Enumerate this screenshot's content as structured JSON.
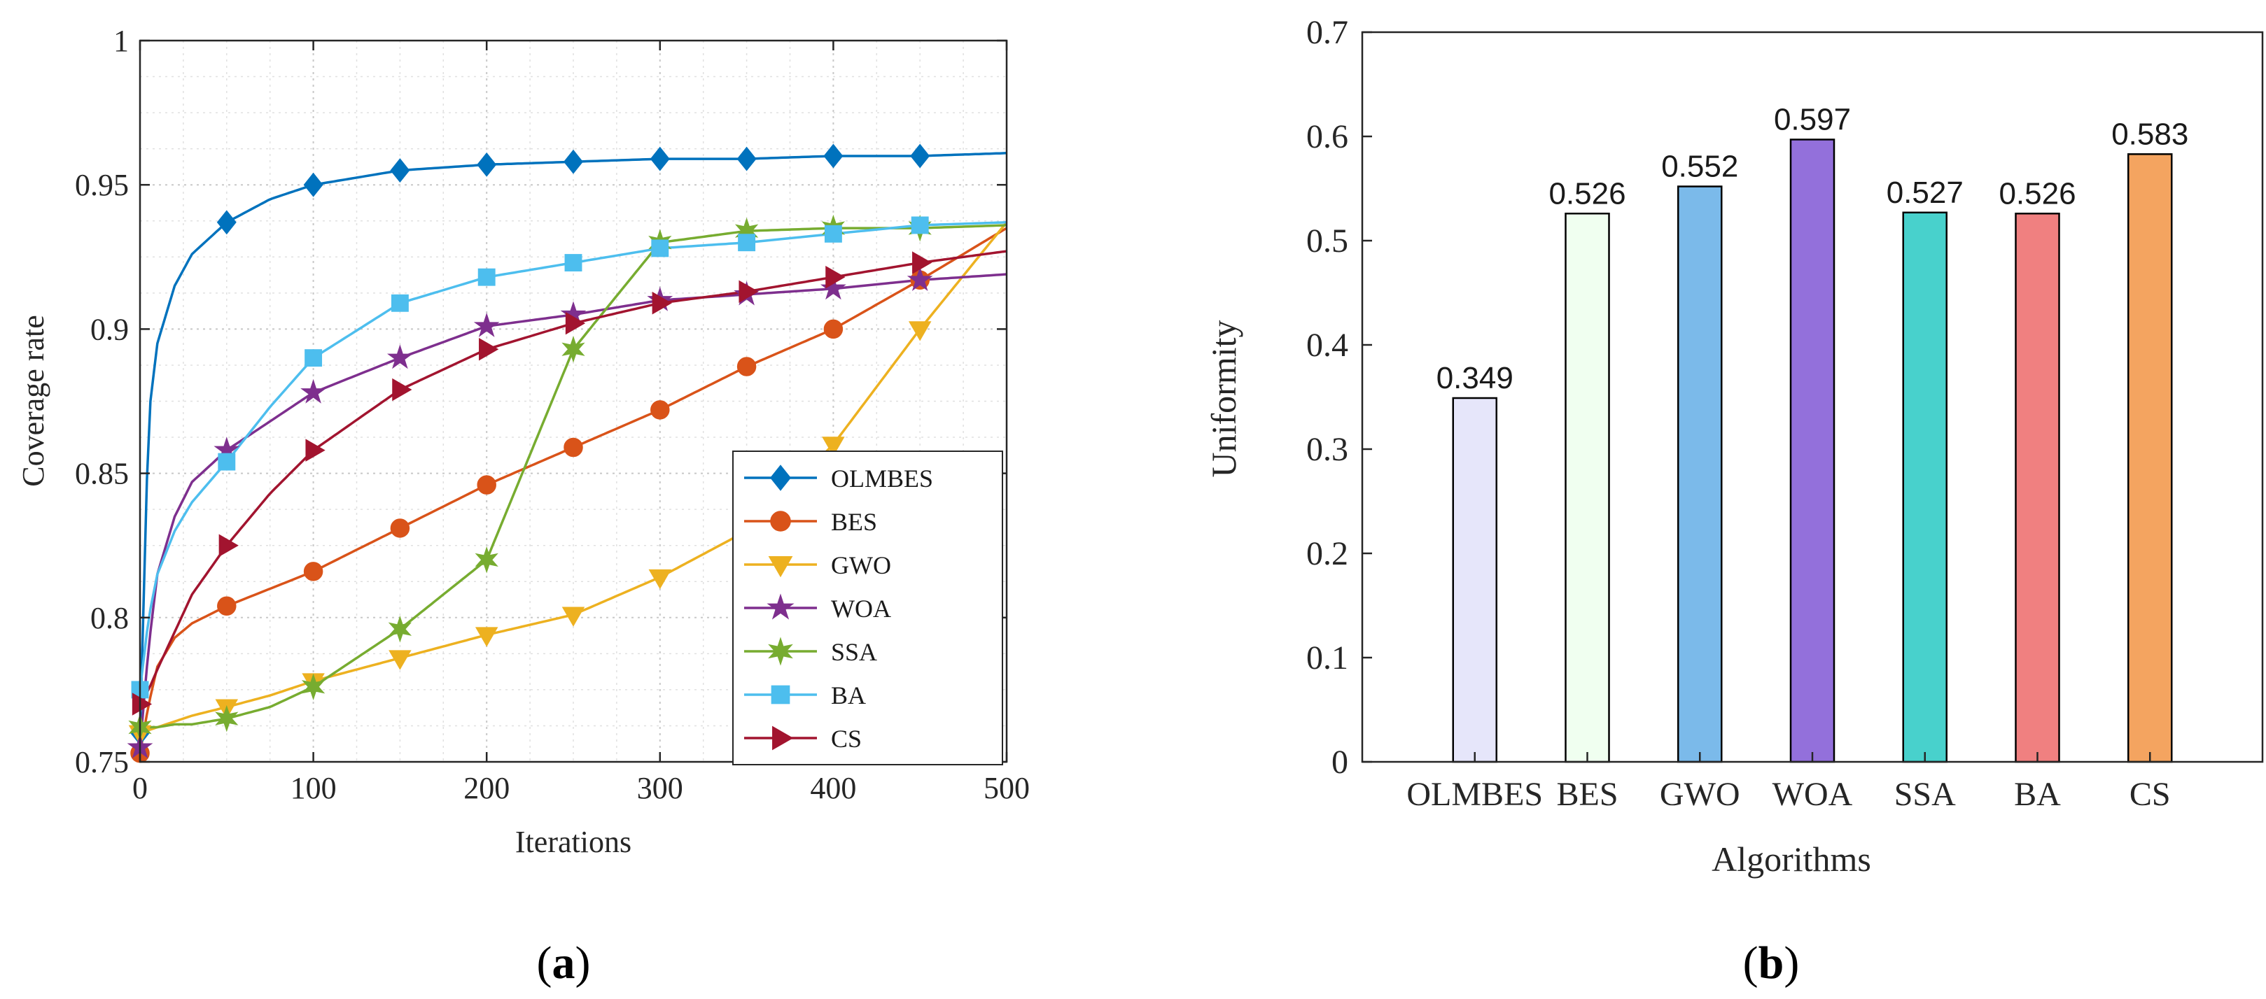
{
  "panels": {
    "a": {
      "label": "(",
      "letter": "a",
      "close": ")"
    },
    "b": {
      "label": "(",
      "letter": "b",
      "close": ")"
    }
  },
  "chart_data": [
    {
      "type": "line",
      "xlabel": "Iterations",
      "ylabel": "Coverage rate",
      "xlim": [
        0,
        500
      ],
      "ylim": [
        0.75,
        1
      ],
      "xticks": [
        "0",
        "100",
        "200",
        "300",
        "400",
        "500"
      ],
      "yticks": [
        "0.75",
        "0.8",
        "0.85",
        "0.9",
        "0.95",
        "1"
      ],
      "grid": true,
      "legend_position": "bottom-right",
      "x": [
        0,
        5,
        10,
        20,
        30,
        50,
        75,
        100,
        150,
        200,
        250,
        300,
        350,
        400,
        450,
        500
      ],
      "series": [
        {
          "name": "OLMBES",
          "color": "#0072BD",
          "marker": "diamond",
          "values": [
            0.76,
            0.87,
            0.895,
            0.915,
            0.926,
            0.937,
            0.945,
            0.95,
            0.955,
            0.957,
            0.958,
            0.959,
            0.959,
            0.96,
            0.96,
            0.961
          ]
        },
        {
          "name": "BES",
          "color": "#D95319",
          "marker": "circle",
          "values": [
            0.753,
            0.77,
            0.783,
            0.793,
            0.798,
            0.804,
            0.81,
            0.816,
            0.831,
            0.846,
            0.859,
            0.872,
            0.887,
            0.9,
            0.917,
            0.935
          ]
        },
        {
          "name": "GWO",
          "color": "#EDB120",
          "marker": "triangle-down",
          "values": [
            0.76,
            0.761,
            0.762,
            0.764,
            0.766,
            0.769,
            0.773,
            0.778,
            0.786,
            0.794,
            0.801,
            0.814,
            0.83,
            0.86,
            0.9,
            0.937
          ]
        },
        {
          "name": "WOA",
          "color": "#7E2F8E",
          "marker": "star",
          "values": [
            0.755,
            0.79,
            0.815,
            0.835,
            0.847,
            0.858,
            0.868,
            0.878,
            0.89,
            0.901,
            0.905,
            0.91,
            0.912,
            0.914,
            0.917,
            0.919
          ]
        },
        {
          "name": "SSA",
          "color": "#77AC30",
          "marker": "star6",
          "values": [
            0.762,
            0.762,
            0.762,
            0.763,
            0.763,
            0.765,
            0.769,
            0.776,
            0.796,
            0.82,
            0.893,
            0.93,
            0.934,
            0.935,
            0.935,
            0.936
          ]
        },
        {
          "name": "BA",
          "color": "#4DBEEE",
          "marker": "square",
          "values": [
            0.775,
            0.8,
            0.815,
            0.83,
            0.84,
            0.854,
            0.873,
            0.89,
            0.909,
            0.918,
            0.923,
            0.928,
            0.93,
            0.933,
            0.936,
            0.937
          ]
        },
        {
          "name": "CS",
          "color": "#A2142F",
          "marker": "triangle-right",
          "values": [
            0.77,
            0.775,
            0.782,
            0.795,
            0.808,
            0.825,
            0.843,
            0.858,
            0.879,
            0.893,
            0.902,
            0.909,
            0.913,
            0.918,
            0.923,
            0.927
          ]
        }
      ],
      "marker_x": [
        0,
        50,
        100,
        150,
        200,
        250,
        300,
        350,
        400,
        450
      ]
    },
    {
      "type": "bar",
      "xlabel": "Algorithms",
      "ylabel": "Uniformity",
      "ylim": [
        0,
        0.7
      ],
      "yticks": [
        "0",
        "0.1",
        "0.2",
        "0.3",
        "0.4",
        "0.5",
        "0.6",
        "0.7"
      ],
      "categories": [
        "OLMBES",
        "BES",
        "GWO",
        "WOA",
        "SSA",
        "BA",
        "CS"
      ],
      "values": [
        0.349,
        0.526,
        0.552,
        0.597,
        0.527,
        0.526,
        0.583
      ],
      "value_labels": [
        "0.349",
        "0.526",
        "0.552",
        "0.597",
        "0.527",
        "0.526",
        "0.583"
      ],
      "colors": [
        "#E6E6FA",
        "#F0FFF0",
        "#7BBAEA",
        "#9370DB",
        "#48D1CC",
        "#F08080",
        "#F4A460"
      ]
    }
  ]
}
